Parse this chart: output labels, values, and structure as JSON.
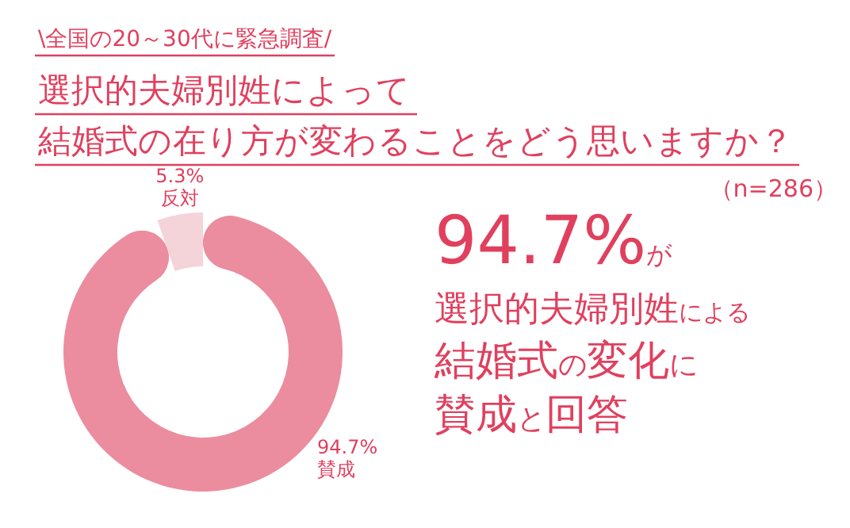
{
  "chart_data": {
    "type": "donut",
    "title": "選択的夫婦別姓によって",
    "subtitle": "結婚式の在り方が変わることをどう思いますか？",
    "categories": [
      "賛成",
      "反対"
    ],
    "values": [
      94.7,
      5.3
    ],
    "value_labels": [
      "94.7%",
      "5.3%"
    ],
    "colors": [
      "#eb8d9e",
      "#f4d3d9"
    ],
    "annotations": [
      "\\全国の20～30代に緊急調査/",
      "（n=286）",
      "94.7%が",
      "選択的夫婦別姓による",
      "結婚式の変化に",
      "賛成と回答"
    ]
  }
}
